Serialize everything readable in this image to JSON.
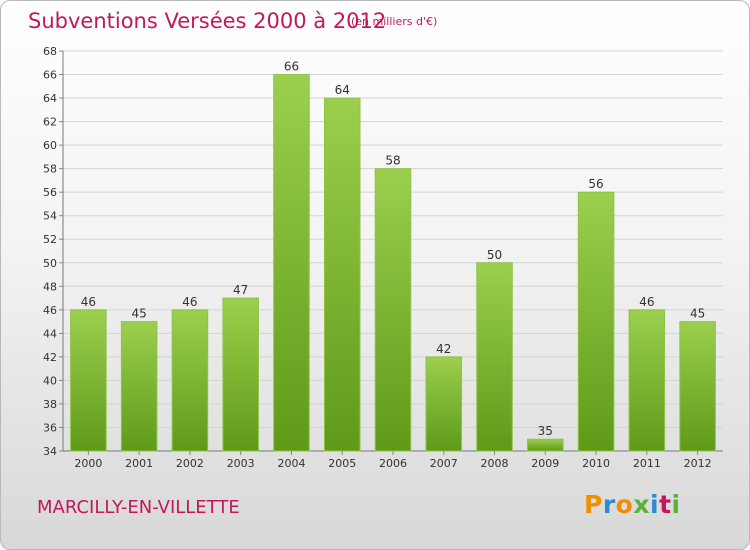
{
  "header": {
    "title": "Subventions Versées 2000 à 2012",
    "unit_note": "(en milliers d'€)"
  },
  "footer": {
    "commune": "MARCILLY-EN-VILLETTE",
    "logo_text": "Proxiti"
  },
  "colors": {
    "bar_light": "#9ccf4e",
    "bar_dark": "#5e9a18",
    "title": "#c2185b",
    "logo": [
      "#f28c00",
      "#2a8ad0",
      "#f28c00",
      "#5ab236",
      "#2a8ad0",
      "#c2185b",
      "#5ab236"
    ]
  },
  "chart_data": {
    "type": "bar",
    "title": "Subventions Versées 2000 à 2012",
    "categories": [
      "2000",
      "2001",
      "2002",
      "2003",
      "2004",
      "2005",
      "2006",
      "2007",
      "2008",
      "2009",
      "2010",
      "2011",
      "2012"
    ],
    "values": [
      46,
      45,
      46,
      47,
      66,
      64,
      58,
      42,
      50,
      35,
      56,
      46,
      45
    ],
    "ylim": [
      34,
      68
    ],
    "yticks": [
      34,
      36,
      38,
      40,
      42,
      44,
      46,
      48,
      50,
      52,
      54,
      56,
      58,
      60,
      62,
      64,
      66,
      68
    ],
    "grid": true,
    "legend": "none"
  }
}
